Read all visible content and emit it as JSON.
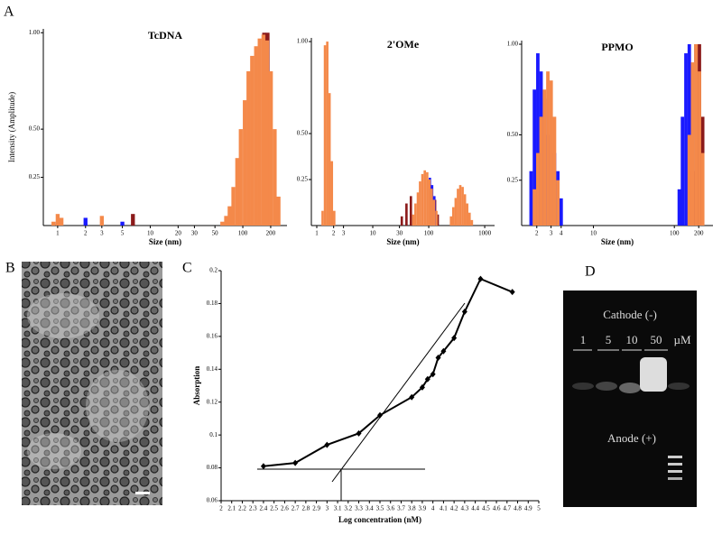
{
  "panel_labels": {
    "a": "A",
    "b": "B",
    "c": "C",
    "d": "D"
  },
  "gel": {
    "cathode": "Cathode (-)",
    "lanes": [
      "1",
      "5",
      "10",
      "50"
    ],
    "unit": "µM",
    "anode": "Anode (+)"
  },
  "chart_data": [
    {
      "type": "bar",
      "title": "TcDNA",
      "x_label": "Size (nm)",
      "y_label": "Intensity (Amplitude)",
      "xscale": "log",
      "xlim": [
        0.7,
        300
      ],
      "xticks": [
        1,
        2,
        3,
        5,
        10,
        20,
        30,
        50,
        100,
        200
      ],
      "ylim": [
        0,
        1.02
      ],
      "yticks": [
        0.25,
        {
          "value": 0.5,
          "label": "0.50"
        },
        {
          "value": 1,
          "label": "1.00"
        }
      ],
      "series": [
        {
          "color": "#8b1a1a",
          "x": [
            1.0,
            6.5,
            170,
            185
          ],
          "values": [
            0.02,
            0.06,
            1.0,
            1.0
          ]
        },
        {
          "color": "#1a1aff",
          "x": [
            2.0,
            5.0
          ],
          "values": [
            0.04,
            0.02
          ]
        },
        {
          "color": "#f4894a",
          "x": [
            0.9,
            1.0,
            1.1,
            3.0,
            60,
            66,
            72,
            79,
            87,
            95,
            105,
            115,
            126,
            139,
            152,
            167,
            183,
            201,
            221,
            243
          ],
          "values": [
            0.02,
            0.06,
            0.04,
            0.05,
            0.02,
            0.05,
            0.1,
            0.2,
            0.35,
            0.5,
            0.65,
            0.8,
            0.88,
            0.93,
            0.97,
            0.99,
            0.96,
            0.8,
            0.5,
            0.15
          ]
        }
      ]
    },
    {
      "type": "bar",
      "title": "2'OMe",
      "x_label": "Size (nm)",
      "xscale": "log",
      "xlim": [
        0.8,
        1500
      ],
      "xticks": [
        1,
        2,
        3,
        10,
        30,
        100,
        1000
      ],
      "ylim": [
        0,
        1.02
      ],
      "yticks": [
        0.25,
        {
          "value": 0.5,
          "label": "0.50"
        },
        {
          "value": 1,
          "label": "1.00"
        }
      ],
      "series": [
        {
          "color": "#8b1a1a",
          "x": [
            33,
            40,
            48,
            130,
            145
          ],
          "values": [
            0.05,
            0.12,
            0.16,
            0.14,
            0.06
          ]
        },
        {
          "color": "#1a1aff",
          "x": [
            105,
            115,
            126
          ],
          "values": [
            0.26,
            0.22,
            0.16
          ]
        },
        {
          "color": "#f4894a",
          "x": [
            1.27,
            1.4,
            1.54,
            1.69,
            1.86,
            2.05,
            53,
            58,
            64,
            70,
            77,
            85,
            94,
            103,
            113,
            124,
            137,
            250,
            275,
            303,
            333,
            366,
            403,
            443,
            487,
            536,
            590
          ],
          "values": [
            0.08,
            0.98,
            1.0,
            0.72,
            0.35,
            0.08,
            0.06,
            0.12,
            0.18,
            0.24,
            0.28,
            0.3,
            0.29,
            0.25,
            0.2,
            0.14,
            0.08,
            0.05,
            0.1,
            0.15,
            0.2,
            0.22,
            0.21,
            0.17,
            0.12,
            0.07,
            0.03
          ]
        }
      ]
    },
    {
      "type": "bar",
      "title": "PPMO",
      "x_label": "Size (nm)",
      "xscale": "log",
      "xlim": [
        1.3,
        300
      ],
      "xticks": [
        2,
        3,
        4,
        10,
        100,
        200
      ],
      "ylim": [
        0,
        1.02
      ],
      "yticks": [
        0.25,
        {
          "value": 0.5,
          "label": "0.50"
        },
        {
          "value": 1,
          "label": "1.00"
        }
      ],
      "series": [
        {
          "color": "#1a1aff",
          "x": [
            1.7,
            1.87,
            2.06,
            2.26,
            2.49,
            2.74,
            3.01,
            3.31,
            3.64,
            4.0,
            115,
            126,
            139,
            153
          ],
          "values": [
            0.3,
            0.75,
            0.95,
            0.85,
            0.7,
            0.5,
            0.45,
            0.4,
            0.3,
            0.15,
            0.2,
            0.6,
            0.95,
            1.0
          ]
        },
        {
          "color": "#8b1a1a",
          "x": [
            168,
            185,
            204,
            224
          ],
          "values": [
            0.3,
            1.0,
            1.0,
            0.6
          ]
        },
        {
          "color": "#f4894a",
          "x": [
            1.87,
            2.06,
            2.26,
            2.49,
            2.74,
            3.01,
            3.31,
            3.64,
            153,
            168,
            185,
            204,
            224
          ],
          "values": [
            0.2,
            0.4,
            0.6,
            0.75,
            0.85,
            0.8,
            0.6,
            0.25,
            0.5,
            0.9,
            1.0,
            0.85,
            0.4
          ]
        }
      ]
    },
    {
      "type": "line",
      "x_label": "Log concentration (nM)",
      "y_label": "Absorption",
      "xlim": [
        2,
        5
      ],
      "xticks": [
        2,
        2.1,
        2.2,
        2.3,
        2.4,
        2.5,
        2.6,
        2.7,
        2.8,
        2.9,
        3,
        3.1,
        3.2,
        3.3,
        3.4,
        3.5,
        3.6,
        3.7,
        3.8,
        3.9,
        4,
        4.1,
        4.2,
        4.3,
        4.4,
        4.5,
        4.6,
        4.7,
        4.8,
        4.9,
        5
      ],
      "ylim": [
        0.06,
        0.2
      ],
      "yticks": [
        0.06,
        0.08,
        0.1,
        0.12,
        0.14,
        0.16,
        0.18,
        0.2
      ],
      "x": [
        2.4,
        2.7,
        3.0,
        3.3,
        3.5,
        3.8,
        3.9,
        3.95,
        4.0,
        4.05,
        4.1,
        4.2,
        4.3,
        4.45,
        4.75
      ],
      "series": [
        {
          "color": "#000000",
          "values": [
            0.081,
            0.083,
            0.094,
            0.101,
            0.112,
            0.123,
            0.129,
            0.134,
            0.137,
            0.147,
            0.151,
            0.159,
            0.175,
            0.195,
            0.187
          ]
        }
      ]
    }
  ]
}
